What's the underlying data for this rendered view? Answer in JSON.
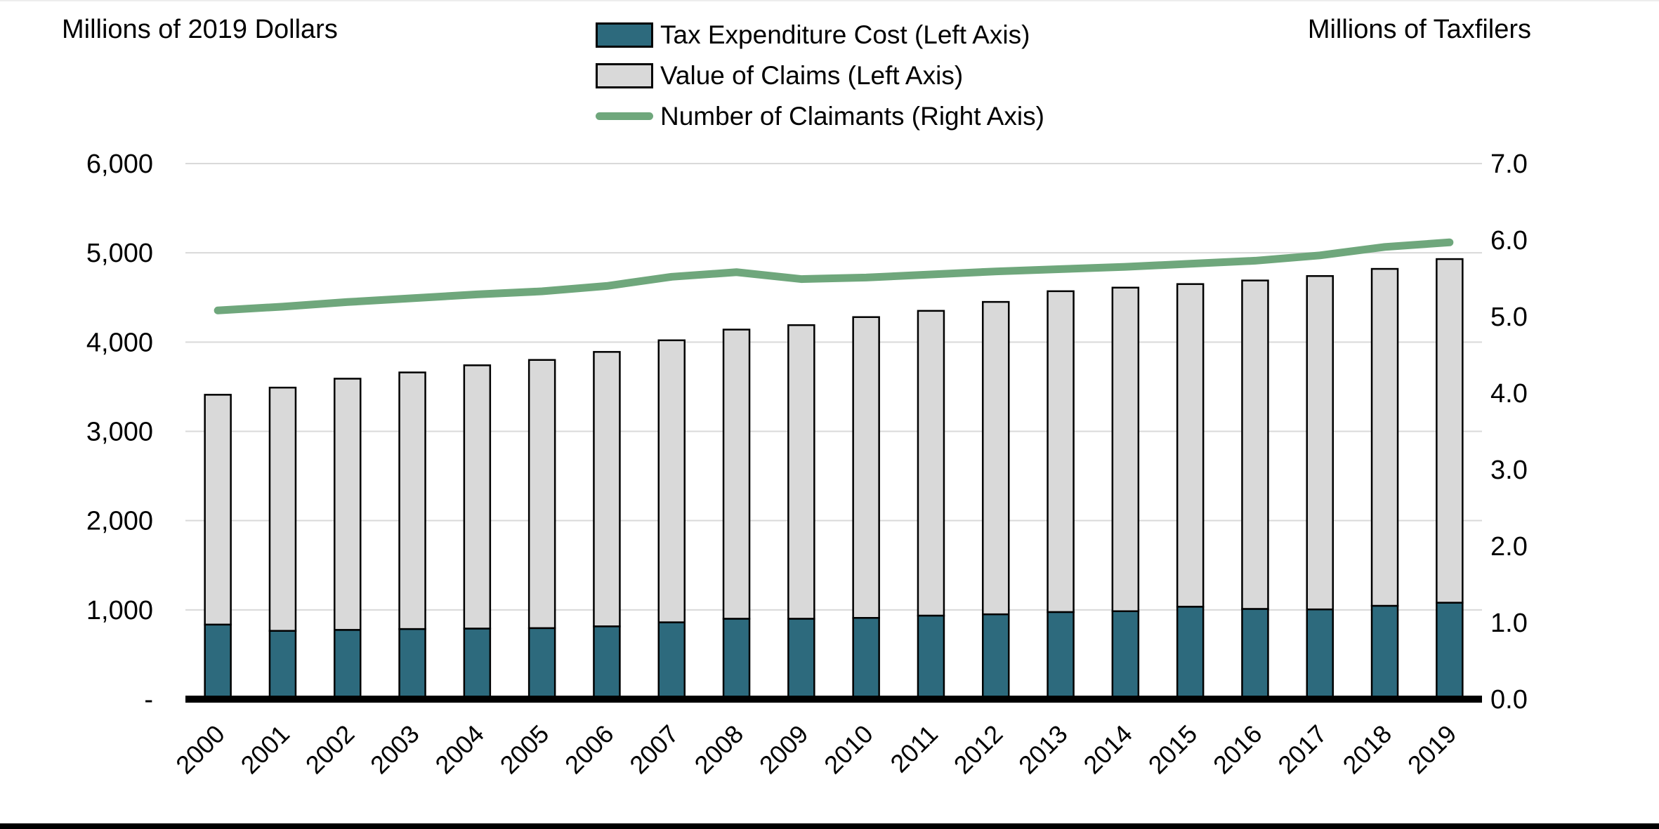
{
  "page": {
    "left_axis_title": "Millions of 2019 Dollars",
    "right_axis_title": "Millions of Taxfilers"
  },
  "legend": {
    "items": [
      {
        "label": "Tax Expenditure Cost (Left Axis)",
        "swatch": "bar",
        "color": "#2D6A7D"
      },
      {
        "label": "Value of Claims (Left Axis)",
        "swatch": "bar",
        "color": "#D9D9D9"
      },
      {
        "label": "Number of Claimants (Right Axis)",
        "swatch": "line",
        "color": "#6FA77C"
      }
    ]
  },
  "chart_data": {
    "type": "bar",
    "subtype": "stacked-bar-with-line-dual-axis",
    "categories": [
      "2000",
      "2001",
      "2002",
      "2003",
      "2004",
      "2005",
      "2006",
      "2007",
      "2008",
      "2009",
      "2010",
      "2011",
      "2012",
      "2013",
      "2014",
      "2015",
      "2016",
      "2017",
      "2018",
      "2019"
    ],
    "series": [
      {
        "name": "Tax Expenditure Cost (Left Axis)",
        "type": "bar",
        "axis": "left",
        "color": "#2D6A7D",
        "values": [
          835,
          765,
          775,
          785,
          790,
          795,
          815,
          860,
          900,
          900,
          910,
          935,
          950,
          975,
          985,
          1035,
          1010,
          1005,
          1045,
          1080
        ]
      },
      {
        "name": "Value of Claims (Left Axis)",
        "type": "bar",
        "axis": "left",
        "color": "#D9D9D9",
        "values_meaning": "total stacked bar height (grey segment drawn from the top of the teal segment up to this total)",
        "values": [
          3410,
          3490,
          3590,
          3660,
          3740,
          3800,
          3890,
          4020,
          4140,
          4190,
          4280,
          4350,
          4450,
          4570,
          4610,
          4650,
          4690,
          4740,
          4820,
          4930
        ]
      },
      {
        "name": "Number of Claimants (Right Axis)",
        "type": "line",
        "axis": "right",
        "color": "#6FA77C",
        "values": [
          5.08,
          5.13,
          5.19,
          5.24,
          5.29,
          5.33,
          5.4,
          5.52,
          5.58,
          5.49,
          5.51,
          5.55,
          5.59,
          5.62,
          5.65,
          5.69,
          5.73,
          5.8,
          5.91,
          5.97
        ]
      }
    ],
    "left_axis": {
      "label": "Millions of 2019 Dollars",
      "range": [
        0,
        6000
      ],
      "tick_step": 1000,
      "tick_labels": [
        "-",
        "1,000",
        "2,000",
        "3,000",
        "4,000",
        "5,000",
        "6,000"
      ]
    },
    "right_axis": {
      "label": "Millions of Taxfilers",
      "range": [
        0,
        7
      ],
      "tick_step": 1,
      "tick_labels": [
        "0.0",
        "1.0",
        "2.0",
        "3.0",
        "4.0",
        "5.0",
        "6.0",
        "7.0"
      ]
    },
    "grid": true,
    "legend_position": "top-center"
  },
  "styles": {
    "background": "#FFFFFF",
    "grid_color": "#D9D9D9",
    "axis_line_color": "#000000",
    "bar_border_color": "#000000",
    "bottom_rule_color": "#000000"
  }
}
